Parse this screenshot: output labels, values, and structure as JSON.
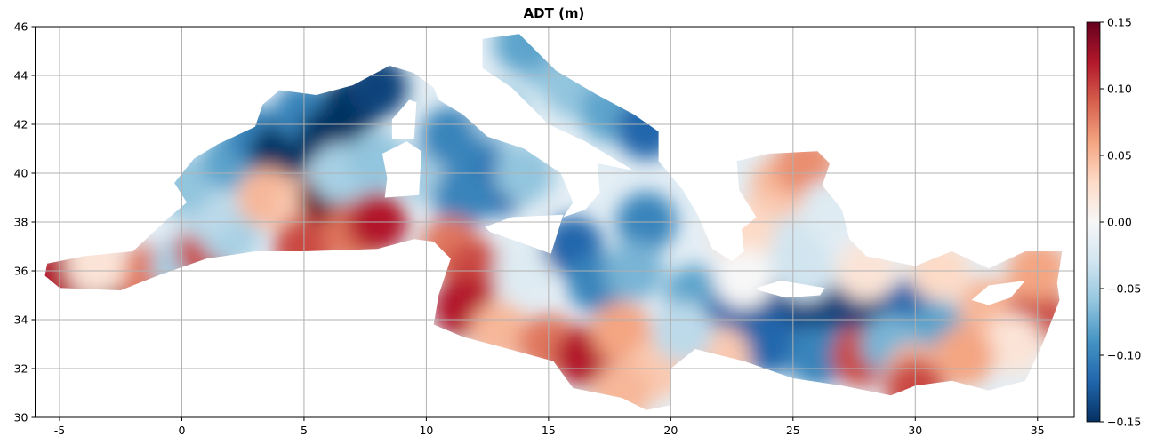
{
  "chart_data": {
    "type": "heatmap",
    "title": "ADT (m)",
    "xlim": [
      -6,
      36.5
    ],
    "ylim": [
      30,
      46
    ],
    "xticks": [
      -5,
      0,
      5,
      10,
      15,
      20,
      25,
      30,
      35
    ],
    "yticks": [
      30,
      32,
      34,
      36,
      38,
      40,
      42,
      44,
      46
    ],
    "grid": true,
    "colormap": "RdBu_r",
    "clim": [
      -0.15,
      0.15
    ],
    "cticks": [
      {
        "value": -0.15,
        "label": "−0.15"
      },
      {
        "value": -0.1,
        "label": "−0.10"
      },
      {
        "value": -0.05,
        "label": "−0.05"
      },
      {
        "value": 0,
        "label": "0.00"
      },
      0.05,
      {
        "value": 0.1,
        "label": "0.10"
      },
      0.15
    ],
    "x": [
      -5,
      -3,
      -1.5,
      -3.5,
      0,
      1,
      2,
      1,
      0,
      2,
      3,
      4,
      5,
      6,
      7,
      8,
      3.5,
      5,
      6,
      5,
      7,
      8,
      6.5,
      8,
      10,
      11,
      12,
      13,
      11.5,
      14,
      13,
      15,
      14,
      16,
      17.5,
      19,
      11,
      12,
      11.5,
      13,
      14,
      16,
      17,
      19,
      18.5,
      15,
      16.5,
      18,
      19.5,
      18,
      24.5,
      25.5,
      24,
      25,
      23,
      26.5,
      21,
      22.5,
      24,
      26,
      28,
      30,
      31,
      24,
      26,
      27.8,
      29,
      33,
      35,
      34,
      32,
      30,
      22,
      20.5,
      25.5,
      28,
      31,
      35,
      23,
      30
    ],
    "y": [
      35.7,
      35.5,
      35.8,
      36.2,
      36.2,
      36.8,
      37.5,
      38.5,
      39.5,
      40.5,
      41.5,
      40.8,
      42.5,
      41.5,
      42.8,
      43.5,
      39,
      38.5,
      39,
      37,
      37.5,
      38,
      40,
      40.5,
      40,
      41.5,
      40.5,
      39.5,
      39,
      40,
      42.5,
      44.5,
      45.3,
      43.5,
      42.5,
      41.8,
      37,
      36,
      34.5,
      33.5,
      36,
      37,
      35.5,
      38,
      36,
      33,
      32.5,
      33.5,
      32,
      31,
      39.5,
      40.3,
      38,
      37,
      37.5,
      38.5,
      35,
      34,
      34.5,
      34.5,
      34.3,
      34.5,
      33.5,
      33,
      32.5,
      32.5,
      33,
      34.5,
      34.2,
      33,
      32.5,
      31.8,
      32.5,
      33.5,
      36,
      36,
      36,
      36,
      35.7,
      31.2
    ],
    "values": [
      0.12,
      0.14,
      0.08,
      0.02,
      -0.05,
      0.1,
      -0.05,
      -0.04,
      -0.06,
      -0.08,
      -0.1,
      -0.15,
      -0.1,
      -0.15,
      -0.15,
      -0.14,
      0.05,
      0.04,
      0.15,
      0.1,
      0.08,
      0.12,
      -0.05,
      -0.06,
      -0.05,
      -0.1,
      -0.1,
      -0.12,
      -0.1,
      -0.06,
      -0.05,
      -0.06,
      -0.08,
      -0.06,
      -0.08,
      -0.12,
      0.08,
      0.1,
      0.12,
      0.05,
      -0.02,
      -0.12,
      -0.1,
      -0.1,
      -0.07,
      0.08,
      0.12,
      0.06,
      0.04,
      0.05,
      0.05,
      0.07,
      0.04,
      -0.03,
      0.03,
      -0.02,
      -0.08,
      -0.12,
      -0.13,
      -0.14,
      -0.14,
      -0.12,
      -0.08,
      -0.12,
      -0.1,
      0.1,
      -0.07,
      0.05,
      0.1,
      0.02,
      0.06,
      0.05,
      0.04,
      -0.04,
      -0.03,
      0.02,
      0.03,
      0.06,
      0,
      0.1
    ]
  }
}
